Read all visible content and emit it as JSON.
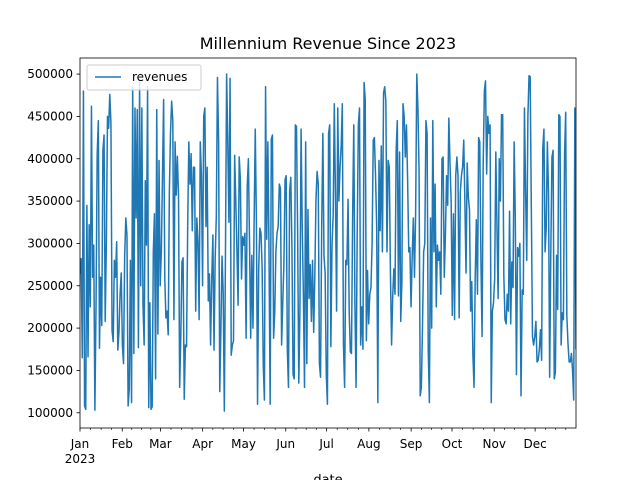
{
  "chart_data": {
    "type": "line",
    "title": "Millennium Revenue Since 2023",
    "xlabel": "date",
    "ylabel": "",
    "x_start": "2023-01-01",
    "x_end": "2023-12-31",
    "x_ticks": [
      {
        "label": "Jan",
        "sublabel": "2023",
        "date": "2023-01-01"
      },
      {
        "label": "Feb",
        "date": "2023-02-01"
      },
      {
        "label": "Mar",
        "date": "2023-03-01"
      },
      {
        "label": "Apr",
        "date": "2023-04-01"
      },
      {
        "label": "May",
        "date": "2023-05-01"
      },
      {
        "label": "Jun",
        "date": "2023-06-01"
      },
      {
        "label": "Jul",
        "date": "2023-07-01"
      },
      {
        "label": "Aug",
        "date": "2023-08-01"
      },
      {
        "label": "Sep",
        "date": "2023-09-01"
      },
      {
        "label": "Oct",
        "date": "2023-10-01"
      },
      {
        "label": "Nov",
        "date": "2023-11-01"
      },
      {
        "label": "Dec",
        "date": "2023-12-01"
      }
    ],
    "ylim": [
      82000,
      519000
    ],
    "y_ticks": [
      100000,
      150000,
      200000,
      250000,
      300000,
      350000,
      400000,
      450000,
      500000
    ],
    "y_tick_labels": [
      "100000",
      "150000",
      "200000",
      "250000",
      "300000",
      "350000",
      "400000",
      "450000",
      "500000"
    ],
    "legend_position": "top-left",
    "grid": false,
    "series": [
      {
        "name": "revenues",
        "color": "#1f77b4",
        "values": [
          264000,
          282000,
          165000,
          480000,
          108000,
          104000,
          345000,
          166000,
          322000,
          225000,
          462000,
          260000,
          298000,
          103000,
          228000,
          405000,
          445000,
          176000,
          260000,
          203000,
          410000,
          428000,
          208000,
          300000,
          450000,
          436000,
          476000,
          442000,
          197000,
          184000,
          280000,
          260000,
          302000,
          174000,
          195000,
          240000,
          265000,
          180000,
          158000,
          285000,
          330000,
          310000,
          108000,
          128000,
          280000,
          112000,
          485000,
          170000,
          460000,
          330000,
          458000,
          177000,
          490000,
          250000,
          460000,
          226000,
          180000,
          374000,
          298000,
          485000,
          106000,
          230000,
          104000,
          107000,
          290000,
          335000,
          140000,
          458000,
          193000,
          398000,
          250000,
          290000,
          380000,
          470000,
          260000,
          212000,
          220000,
          192000,
          360000,
          431000,
          468000,
          445000,
          210000,
          420000,
          357000,
          403000,
          356000,
          130000,
          190000,
          278000,
          283000,
          116000,
          180000,
          178000,
          320000,
          420000,
          370000,
          406000,
          315000,
          390000,
          390000,
          220000,
          330000,
          302000,
          210000,
          420000,
          380000,
          250000,
          450000,
          460000,
          320000,
          390000,
          232000,
          264000,
          180000,
          258000,
          310000,
          174000,
          282000,
          332000,
          496000,
          420000,
          125000,
          200000,
          285000,
          242000,
          102000,
          292000,
          500000,
          420000,
          325000,
          495000,
          168000,
          180000,
          185000,
          404000,
          350000,
          292000,
          227000,
          402000,
          375000,
          258000,
          308000,
          298000,
          312000,
          188000,
          368000,
          400000,
          300000,
          188000,
          286000,
          200000,
          325000,
          435000,
          325000,
          110000,
          270000,
          318000,
          312000,
          272000,
          155000,
          115000,
          485000,
          305000,
          420000,
          290000,
          110000,
          423000,
          428000,
          188000,
          218000,
          290000,
          312000,
          320000,
          370000,
          365000,
          180000,
          230000,
          275000,
          375000,
          380000,
          174000,
          130000,
          362000,
          378000,
          298000,
          145000,
          140000,
          440000,
          438000,
          312000,
          135000,
          222000,
          435000,
          320000,
          240000,
          130000,
          420000,
          158000,
          340000,
          235000,
          275000,
          208000,
          280000,
          195000,
          262000,
          352000,
          385000,
          370000,
          158000,
          142000,
          320000,
          430000,
          285000,
          265000,
          145000,
          110000,
          430000,
          440000,
          178000,
          298000,
          332000,
          465000,
          356000,
          220000,
          460000,
          350000,
          390000,
          415000,
          465000,
          180000,
          130000,
          280000,
          275000,
          352000,
          220000,
          172000,
          170000,
          332000,
          440000,
          228000,
          130000,
          312000,
          440000,
          460000,
          180000,
          225000,
          175000,
          490000,
          470000,
          185000,
          268000,
          205000,
          240000,
          248000,
          300000,
          422000,
          425000,
          380000,
          320000,
          112000,
          398000,
          315000,
          415000,
          290000,
          478000,
          485000,
          468000,
          290000,
          398000,
          390000,
          265000,
          180000,
          238000,
          270000,
          240000,
          410000,
          445000,
          238000,
          408000,
          208000,
          255000,
          465000,
          450000,
          402000,
          440000,
          375000,
          290000,
          295000,
          225000,
          285000,
          330000,
          260000,
          335000,
          500000,
          460000,
          385000,
          120000,
          130000,
          202000,
          290000,
          300000,
          445000,
          430000,
          175000,
          112000,
          330000,
          200000,
          445000,
          290000,
          370000,
          225000,
          298000,
          280000,
          290000,
          240000,
          400000,
          402000,
          260000,
          310000,
          380000,
          345000,
          448000,
          395000,
          350000,
          215000,
          335000,
          210000,
          380000,
          402000,
          380000,
          212000,
          360000,
          380000,
          390000,
          422000,
          348000,
          265000,
          395000,
          355000,
          340000,
          220000,
          255000,
          168000,
          130000,
          260000,
          328000,
          240000,
          425000,
          420000,
          280000,
          190000,
          395000,
          480000,
          492000,
          382000,
          450000,
          430000,
          440000,
          112000,
          220000,
          230000,
          258000,
          408000,
          320000,
          235000,
          400000,
          350000,
          452000,
          452000,
          262000,
          210000,
          205000,
          240000,
          220000,
          338000,
          205000,
          278000,
          248000,
          420000,
          330000,
          145000,
          295000,
          285000,
          300000,
          120000,
          245000,
          240000,
          460000,
          360000,
          280000,
          450000,
          498000,
          497000,
          340000,
          190000,
          180000,
          190000,
          208000,
          160000,
          162000,
          175000,
          198000,
          162000,
          412000,
          435000,
          290000,
          318000,
          420000,
          360000,
          142000,
          290000,
          402000,
          410000,
          140000,
          148000,
          286000,
          222000,
          452000,
          450000,
          180000,
          218000,
          210000,
          405000,
          455000,
          215000,
          182000,
          160000,
          160000,
          170000,
          150000,
          115000,
          460000,
          175000
        ]
      }
    ]
  }
}
